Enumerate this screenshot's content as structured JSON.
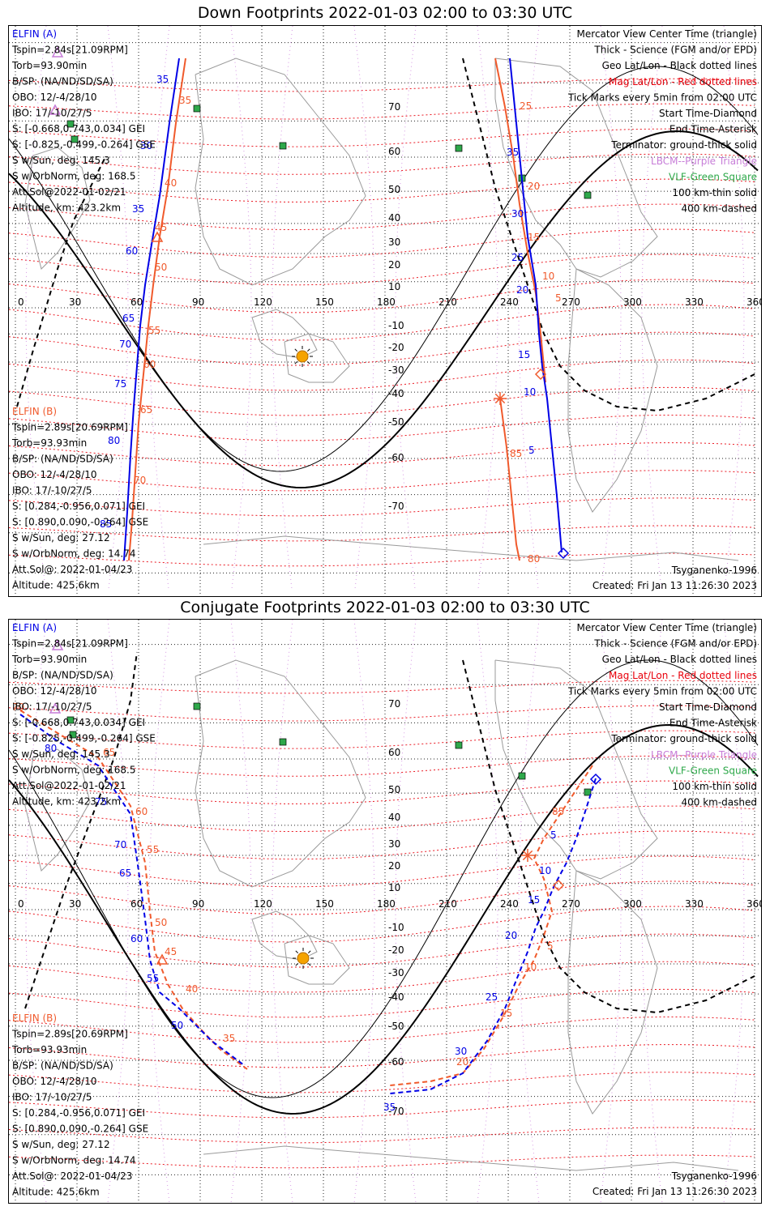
{
  "panels": [
    {
      "id": "down",
      "title": "Down Footprints 2022-01-03 02:00 to 03:30 UTC",
      "elfin_a": {
        "label": "ELFIN (A)",
        "lines": [
          "Tspin=2.84s[21.09RPM]",
          "Torb=93.90min",
          "B/SP: (NA/ND/SD/SA)",
          "OBO: 12/-4/28/10",
          "IBO: 17/-10/27/5",
          "S: [-0.668,0.743,0.034] GEI",
          "S: [-0.825,-0.499,-0.264] GSE",
          "S w/Sun, deg: 145.3",
          "S w/OrbNorm, deg: 168.5",
          "Att.Sol@2022-01-02/21",
          "Altitude, km: 423.2km"
        ]
      },
      "elfin_b": {
        "label": "ELFIN (B)",
        "lines": [
          "Tspin=2.89s[20.69RPM]",
          "Torb=93.93min",
          "B/SP: (NA/ND/SD/SA)",
          "OBO: 12/-4/28/10",
          "IBO: 17/-10/27/5",
          "S: [0.284,-0.956,0.071] GEI",
          "S: [0.890,0.090,-0.264] GSE",
          "S w/Sun, deg: 27.12",
          "S w/OrbNorm, deg: 14.74",
          "Att.Sol@: 2022-01-04/23",
          "Altitude: 425.6km"
        ]
      },
      "legend": [
        {
          "text": "Mercator View Center Time (triangle)",
          "color": "#000000"
        },
        {
          "text": "Thick - Science (FGM and/or EPD)",
          "color": "#000000"
        },
        {
          "text": "Geo Lat/Lon - Black dotted lines",
          "color": "#000000"
        },
        {
          "text": "Mag Lat/Lon - Red dotted lines",
          "color": "#e8000b"
        },
        {
          "text": "Tick Marks every 5min from 02:00 UTC",
          "color": "#000000"
        },
        {
          "text": "Start Time-Diamond",
          "color": "#000000"
        },
        {
          "text": "End Time-Asterisk",
          "color": "#000000"
        },
        {
          "text": "Terminator: ground-thick solid",
          "color": "#000000"
        },
        {
          "text": "LBCM--Purple Triangle",
          "color": "#c77dd8"
        },
        {
          "text": "VLF-Green Square",
          "color": "#2ea84a"
        },
        {
          "text": "100 km-thin solid",
          "color": "#000000"
        },
        {
          "text": "400 km-dashed",
          "color": "#000000"
        }
      ],
      "model": "Tsyganenko-1996",
      "created": "Created: Fri Jan 13 11:26:30 2023",
      "lon_labels": [
        "0",
        "30",
        "60",
        "90",
        "120",
        "150",
        "180",
        "210",
        "240",
        "270",
        "300",
        "330",
        "360"
      ],
      "lat_labels": [
        "70",
        "60",
        "50",
        "40",
        "30",
        "20",
        "10",
        "-10",
        "-20",
        "-30",
        "-40",
        "-50",
        "-60",
        "-70"
      ],
      "a_ticks": [
        "35",
        "30",
        "35",
        "60",
        "65",
        "70",
        "75",
        "80",
        "85",
        "35",
        "30",
        "25",
        "20",
        "15",
        "10",
        "5"
      ],
      "b_ticks": [
        "35",
        "40",
        "45",
        "50",
        "55",
        "60",
        "65",
        "70",
        "25",
        "20",
        "15",
        "10",
        "5",
        "85",
        "80"
      ]
    },
    {
      "id": "conjugate",
      "title": "Conjugate Footprints 2022-01-03 02:00 to 03:30 UTC",
      "elfin_a": {
        "label": "ELFIN (A)",
        "lines": [
          "Tspin=2.84s[21.09RPM]",
          "Torb=93.90min",
          "B/SP: (NA/ND/SD/SA)",
          "OBO: 12/-4/28/10",
          "IBO: 17/-10/27/5",
          "S: [-0.668,0.743,0.034] GEI",
          "S: [-0.825,-0.499,-0.264] GSE",
          "S w/Sun, deg: 145.3",
          "S w/OrbNorm, deg: 168.5",
          "Att.Sol@2022-01-02/21",
          "Altitude, km: 423.2km"
        ]
      },
      "elfin_b": {
        "label": "ELFIN (B)",
        "lines": [
          "Tspin=2.89s[20.69RPM]",
          "Torb=93.93min",
          "B/SP: (NA/ND/SD/SA)",
          "OBO: 12/-4/28/10",
          "IBO: 17/-10/27/5",
          "S: [0.284,-0.956,0.071] GEI",
          "S: [0.890,0.090,-0.264] GSE",
          "S w/Sun, deg: 27.12",
          "S w/OrbNorm, deg: 14.74",
          "Att.Sol@: 2022-01-04/23",
          "Altitude: 425.6km"
        ]
      },
      "legend": [
        {
          "text": "Mercator View Center Time (triangle)",
          "color": "#000000"
        },
        {
          "text": "Thick - Science (FGM and/or EPD)",
          "color": "#000000"
        },
        {
          "text": "Geo Lat/Lon - Black dotted lines",
          "color": "#000000"
        },
        {
          "text": "Mag Lat/Lon - Red dotted lines",
          "color": "#e8000b"
        },
        {
          "text": "Tick Marks every 5min from 02:00 UTC",
          "color": "#000000"
        },
        {
          "text": "Start Time-Diamond",
          "color": "#000000"
        },
        {
          "text": "End Time-Asterisk",
          "color": "#000000"
        },
        {
          "text": "Terminator: ground-thick solid",
          "color": "#000000"
        },
        {
          "text": "LBCM--Purple Triangle",
          "color": "#c77dd8"
        },
        {
          "text": "VLF-Green Square",
          "color": "#2ea84a"
        },
        {
          "text": "100 km-thin solid",
          "color": "#000000"
        },
        {
          "text": "400 km-dashed",
          "color": "#000000"
        }
      ],
      "model": "Tsyganenko-1996",
      "created": "Created: Fri Jan 13 11:26:30 2023",
      "lon_labels": [
        "0",
        "30",
        "60",
        "90",
        "120",
        "150",
        "180",
        "210",
        "240",
        "270",
        "300",
        "330",
        "360"
      ],
      "lat_labels": [
        "70",
        "60",
        "50",
        "40",
        "30",
        "20",
        "10",
        "-10",
        "-20",
        "-30",
        "-40",
        "-50",
        "-60",
        "-70"
      ],
      "a_ticks": [
        "80",
        "75",
        "70",
        "65",
        "60",
        "55",
        "50",
        "5",
        "10",
        "15",
        "20",
        "25",
        "30",
        "35"
      ],
      "b_ticks": [
        "70",
        "65",
        "60",
        "55",
        "50",
        "45",
        "40",
        "35",
        "85",
        "5",
        "10",
        "15",
        "20"
      ]
    }
  ],
  "colors": {
    "elfin_a": "#0000e6",
    "elfin_b": "#f05a2c",
    "mag_grid": "#e8000b",
    "geo_grid": "#222222",
    "lbcm": "#c77dd8",
    "vlf": "#2ea84a",
    "sun": "#f5a300"
  }
}
